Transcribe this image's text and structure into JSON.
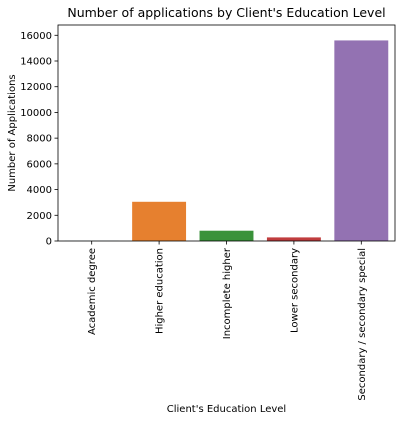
{
  "chart_data": {
    "type": "bar",
    "title": "Number of applications by Client's Education Level",
    "xlabel": "Client's Education Level",
    "ylabel": "Number of Applications",
    "categories": [
      "Academic degree",
      "Higher education",
      "Incomplete higher",
      "Lower secondary",
      "Secondary / secondary special"
    ],
    "values": [
      10,
      3050,
      800,
      280,
      15600
    ],
    "colors": [
      "#1f77b4",
      "#e6802f",
      "#3a923a",
      "#c03d3e",
      "#9372b2"
    ],
    "ylim": [
      0,
      16800
    ],
    "yticks": [
      0,
      2000,
      4000,
      6000,
      8000,
      10000,
      12000,
      14000,
      16000
    ],
    "ytick_labels": [
      "0",
      "2000",
      "4000",
      "6000",
      "8000",
      "10000",
      "12000",
      "14000",
      "16000"
    ],
    "grid": false
  }
}
